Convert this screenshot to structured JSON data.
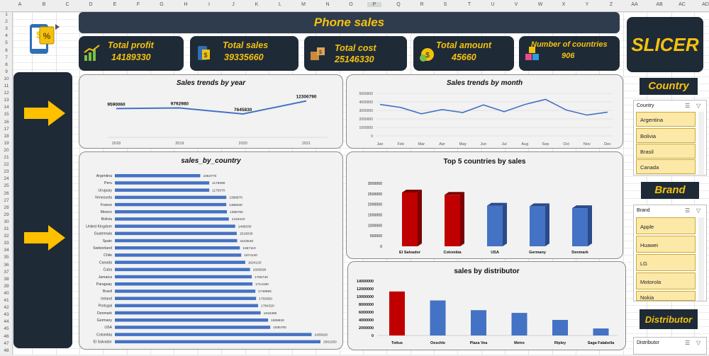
{
  "sheet": {
    "columns": [
      "A",
      "B",
      "C",
      "D",
      "E",
      "F",
      "G",
      "H",
      "I",
      "J",
      "K",
      "L",
      "M",
      "N",
      "O",
      "P",
      "Q",
      "R",
      "S",
      "T",
      "U",
      "V",
      "W",
      "X",
      "Y",
      "Z",
      "AA",
      "AB",
      "AC",
      "AD"
    ],
    "rows": [
      "1",
      "2",
      "3",
      "4",
      "5",
      "6",
      "7",
      "8",
      "9",
      "10",
      "11",
      "12",
      "13",
      "14",
      "15",
      "16",
      "17",
      "18",
      "19",
      "20",
      "21",
      "22",
      "23",
      "24",
      "25",
      "26",
      "27",
      "28",
      "29",
      "30",
      "31",
      "32",
      "33",
      "34",
      "35",
      "36",
      "37",
      "38",
      "39",
      "40",
      "41",
      "42",
      "43",
      "44",
      "45",
      "46",
      "47",
      "48"
    ]
  },
  "header": {
    "title": "Phone sales",
    "slicer_title": "SLICER"
  },
  "kpis": [
    {
      "label": "Total profit",
      "value": "14189330",
      "icon": "profit-chart-icon"
    },
    {
      "label": "Total sales",
      "value": "39335660",
      "icon": "sales-receipt-icon"
    },
    {
      "label": "Total cost",
      "value": "25146330",
      "icon": "cost-boxes-icon"
    },
    {
      "label": "Total amount",
      "value": "45660",
      "icon": "money-bag-icon"
    },
    {
      "label": "Number of countries",
      "value": "906",
      "icon": "blocks-icon"
    }
  ],
  "colors": {
    "navy": "#1f2a37",
    "gold": "#f4c20d",
    "blue": "#4472c4",
    "red": "#c00000",
    "arrow": "#ffc000"
  },
  "chart_data": [
    {
      "type": "line",
      "title": "Sales trends by year",
      "x": [
        "2018",
        "2019",
        "2020",
        "2021"
      ],
      "values": [
        9590060,
        9792980,
        7645830,
        12306790
      ],
      "data_labels": [
        "9590060",
        "9792980",
        "7645830",
        "12306790"
      ]
    },
    {
      "type": "line",
      "title": "Sales trends by month",
      "x": [
        "Jan",
        "Feb",
        "Mar",
        "Apr",
        "May",
        "Jun",
        "Jul",
        "Aug",
        "Sep",
        "Oct",
        "Nov",
        "Dec"
      ],
      "values": [
        3700000,
        3350000,
        2600000,
        3100000,
        2750000,
        3650000,
        2850000,
        3700000,
        4300000,
        3050000,
        2450000,
        2800000
      ],
      "yticks": [
        "5000000",
        "4000000",
        "3000000",
        "2000000",
        "1000000",
        "0"
      ],
      "ylim": [
        0,
        5000000
      ]
    },
    {
      "type": "bar",
      "orientation": "horizontal",
      "title": "sales_by_country",
      "categories": [
        "Argentina",
        "Peru",
        "Uruguay",
        "Venezuela",
        "France",
        "Mexico",
        "Bolivia",
        "United Kingdom",
        "Guatemala",
        "Spain",
        "Switzerland",
        "Chile",
        "Canada",
        "Cuba",
        "Jamaica",
        "Paraguay",
        "Brasil",
        "Ireland",
        "Portugal",
        "Denmark",
        "Germany",
        "USA",
        "Colombia",
        "El Salvador"
      ],
      "values": [
        1063770,
        1176080,
        1176070,
        1388870,
        1388040,
        1395760,
        1419410,
        1499330,
        1518030,
        1523540,
        1557110,
        1574130,
        1624120,
        1683590,
        1705740,
        1714190,
        1749990,
        1759350,
        1784320,
        1816390,
        1908820,
        1935700,
        2450920,
        2561250
      ],
      "data_labels": [
        "1063770",
        "1176080",
        "1176070",
        "1388870",
        "1388040",
        "1395760",
        "1419410",
        "1499330",
        "1518030",
        "1523540",
        "1557110",
        "1574130",
        "1624120",
        "1683590",
        "1705740",
        "1714190",
        "1749990",
        "1759350",
        "1784320",
        "1816390",
        "1908820",
        "1935700",
        "2450920",
        "2561250"
      ]
    },
    {
      "type": "bar",
      "title": "Top 5 countries by sales",
      "categories": [
        "El Salvador",
        "Colombia",
        "USA",
        "Germany",
        "Denmark"
      ],
      "values": [
        2561250,
        2450920,
        1935700,
        1908820,
        1816390
      ],
      "yticks": [
        "3000000",
        "2500000",
        "2000000",
        "1500000",
        "1000000",
        "500000",
        "0"
      ],
      "ylim": [
        0,
        3000000
      ]
    },
    {
      "type": "bar",
      "title": "sales by distributor",
      "categories": [
        "Tottus",
        "Oeschle",
        "Plaza Vea",
        "Metro",
        "Ripley",
        "Saga Falabella"
      ],
      "values": [
        11300000,
        9000000,
        6500000,
        5800000,
        4000000,
        1800000
      ],
      "yticks": [
        "14000000",
        "12000000",
        "10000000",
        "8000000",
        "6000000",
        "4000000",
        "2000000",
        "0"
      ],
      "ylim": [
        0,
        14000000
      ]
    }
  ],
  "slicers": {
    "country": {
      "heading": "Country",
      "label": "Country",
      "items": [
        "Argentina",
        "Bolivia",
        "Brasil",
        "Canada"
      ]
    },
    "brand": {
      "heading": "Brand",
      "label": "Brand",
      "items": [
        "Apple",
        "Huawei",
        "LG",
        "Motorola",
        "Nokia"
      ]
    },
    "distributor": {
      "heading": "Distributor",
      "label": "Distributor"
    }
  },
  "tabs": {
    "selected_cell": "P"
  }
}
